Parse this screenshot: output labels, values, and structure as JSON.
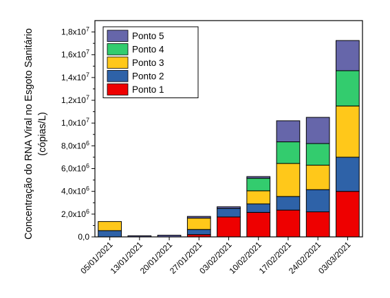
{
  "chart_data": {
    "type": "bar",
    "stacked": true,
    "categories": [
      "05/01/2021",
      "13/01/2021",
      "20/01/2021",
      "27/01/2021",
      "03/02/2021",
      "10/02/2021",
      "17/02/2021",
      "24/02/2021",
      "03/03/2021"
    ],
    "series": [
      {
        "name": "Ponto 1",
        "color": "#ee0000",
        "values": [
          0,
          0,
          0,
          200000,
          1750000,
          2150000,
          2350000,
          2200000,
          4000000
        ]
      },
      {
        "name": "Ponto 2",
        "color": "#2e62a8",
        "values": [
          550000,
          0,
          0,
          450000,
          750000,
          750000,
          1200000,
          1950000,
          3000000
        ]
      },
      {
        "name": "Ponto 3",
        "color": "#ffc81a",
        "values": [
          800000,
          0,
          0,
          1000000,
          0,
          1150000,
          2900000,
          2150000,
          4500000
        ]
      },
      {
        "name": "Ponto 4",
        "color": "#33cc6e",
        "values": [
          0,
          0,
          0,
          0,
          0,
          1100000,
          1900000,
          1900000,
          3100000
        ]
      },
      {
        "name": "Ponto 5",
        "color": "#6666aa",
        "values": [
          0,
          100000,
          150000,
          150000,
          150000,
          150000,
          1850000,
          2300000,
          2650000
        ]
      }
    ],
    "ylabel_line1": "Concentração do RNA Viral no Esgoto Sanitário",
    "ylabel_line2": "(cópias/L)",
    "xlabel": "",
    "ylim": [
      0,
      19000000
    ],
    "yticks": [
      {
        "value": 0,
        "mant": "0,0",
        "exp": ""
      },
      {
        "value": 2000000,
        "mant": "2,0x10",
        "exp": "6"
      },
      {
        "value": 4000000,
        "mant": "4,0x10",
        "exp": "6"
      },
      {
        "value": 6000000,
        "mant": "6,0x10",
        "exp": "6"
      },
      {
        "value": 8000000,
        "mant": "8,0x10",
        "exp": "6"
      },
      {
        "value": 10000000,
        "mant": "1,0x10",
        "exp": "7"
      },
      {
        "value": 12000000,
        "mant": "1,2x10",
        "exp": "7"
      },
      {
        "value": 14000000,
        "mant": "1,4x10",
        "exp": "7"
      },
      {
        "value": 16000000,
        "mant": "1,6x10",
        "exp": "7"
      },
      {
        "value": 18000000,
        "mant": "1,8x10",
        "exp": "7"
      }
    ],
    "legend_position": "top-left",
    "grid": false
  }
}
